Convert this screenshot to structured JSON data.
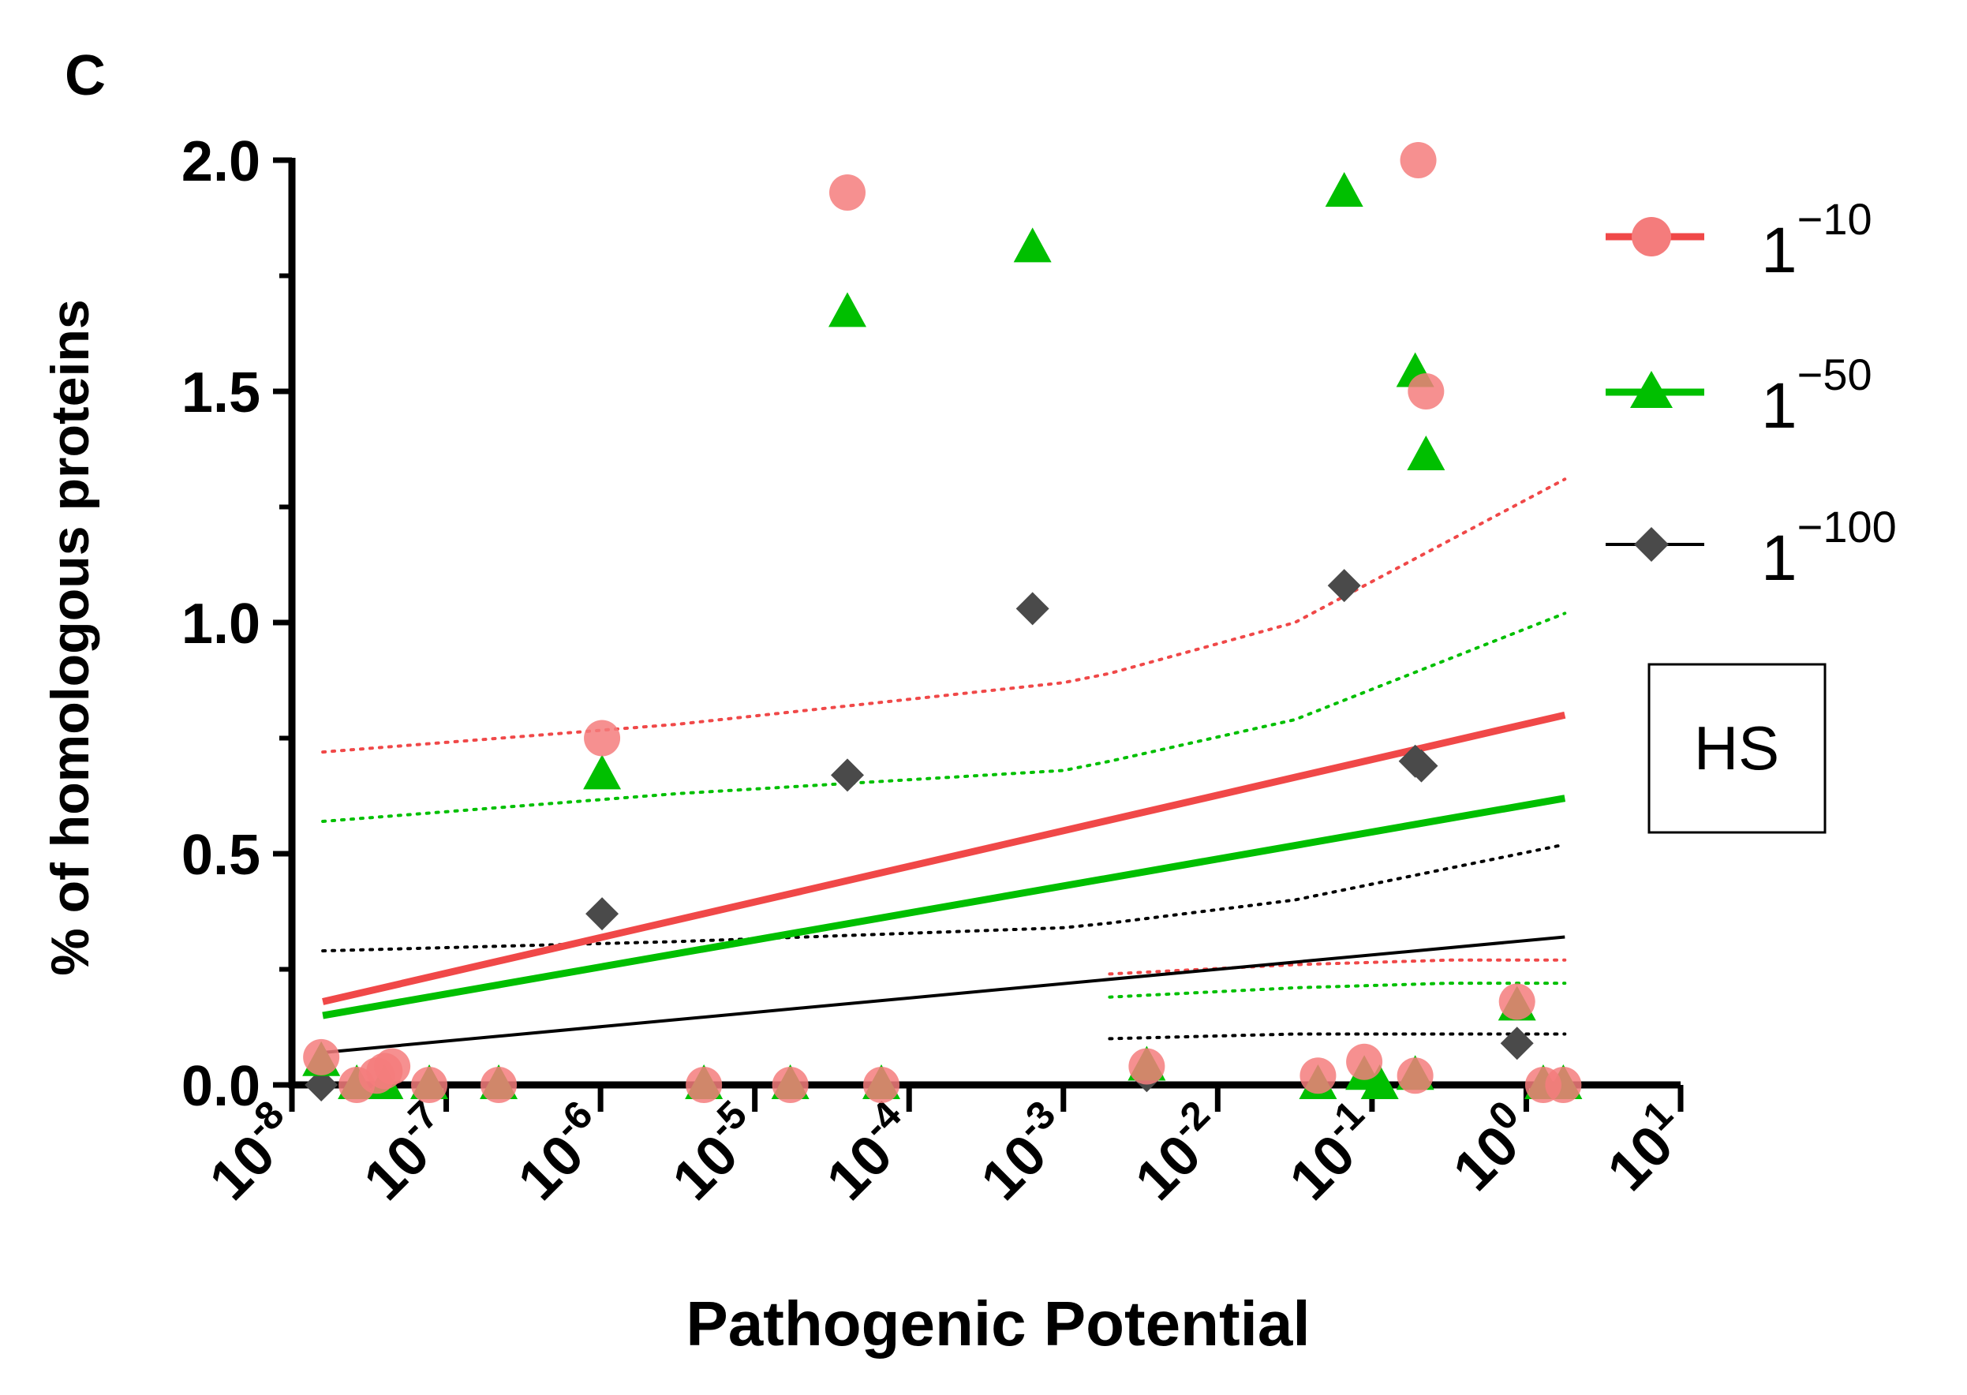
{
  "panel_label": "C",
  "chart_data": {
    "type": "scatter",
    "title": "",
    "xlabel": "Pathogenic Potential",
    "ylabel": "% of homologous proteins",
    "xscale": "log",
    "xlim_exp": [
      -8,
      1
    ],
    "ylim": [
      0,
      2.0
    ],
    "xticks": [
      {
        "base": "10",
        "exp": "-8",
        "value": -8
      },
      {
        "base": "10",
        "exp": "-7",
        "value": -7
      },
      {
        "base": "10",
        "exp": "-6",
        "value": -6
      },
      {
        "base": "10",
        "exp": "-5",
        "value": -5
      },
      {
        "base": "10",
        "exp": "-4",
        "value": -4
      },
      {
        "base": "10",
        "exp": "-3",
        "value": -3
      },
      {
        "base": "10",
        "exp": "-2",
        "value": -2
      },
      {
        "base": "10",
        "exp": "-1",
        "value": -1
      },
      {
        "base": "10",
        "exp": "0",
        "value": 0
      },
      {
        "base": "10",
        "exp": "1",
        "value": 1
      }
    ],
    "yticks": [
      {
        "label": "0.0",
        "value": 0
      },
      {
        "label": "0.5",
        "value": 0.5
      },
      {
        "label": "1.0",
        "value": 1.0
      },
      {
        "label": "1.5",
        "value": 1.5
      },
      {
        "label": "2.0",
        "value": 2.0
      }
    ],
    "annotation": "HS",
    "legend_position": "right",
    "series": [
      {
        "name": "1^-10",
        "legend_base": "1",
        "legend_exp": "−10",
        "marker": "circle",
        "color": "#f47c7c",
        "line_color": "#f04848",
        "points": [
          {
            "x": -7.81,
            "y": 0.06
          },
          {
            "x": -7.58,
            "y": 0.0
          },
          {
            "x": -7.45,
            "y": 0.02
          },
          {
            "x": -7.4,
            "y": 0.03
          },
          {
            "x": -7.35,
            "y": 0.04
          },
          {
            "x": -7.11,
            "y": 0.0
          },
          {
            "x": -6.66,
            "y": 0.0
          },
          {
            "x": -5.99,
            "y": 0.75
          },
          {
            "x": -5.33,
            "y": 0.0
          },
          {
            "x": -4.77,
            "y": 0.0
          },
          {
            "x": -4.4,
            "y": 1.93
          },
          {
            "x": -4.18,
            "y": 0.0
          },
          {
            "x": -2.46,
            "y": 0.04
          },
          {
            "x": -1.35,
            "y": 0.02
          },
          {
            "x": -1.05,
            "y": 0.05
          },
          {
            "x": -0.72,
            "y": 0.02
          },
          {
            "x": -0.7,
            "y": 2.0
          },
          {
            "x": -0.65,
            "y": 1.5
          },
          {
            "x": -0.06,
            "y": 0.18
          },
          {
            "x": 0.11,
            "y": 0.0
          },
          {
            "x": 0.24,
            "y": 0.0
          }
        ],
        "fit_line": {
          "x": [
            -7.8,
            0.25
          ],
          "y": [
            0.18,
            0.8
          ]
        },
        "ci_upper": {
          "x": [
            -7.8,
            -5.5,
            -3.0,
            -2.7,
            -1.5,
            0.25
          ],
          "y": [
            0.72,
            0.78,
            0.87,
            0.89,
            1.0,
            1.31
          ]
        },
        "ci_lower": {
          "x": [
            -2.7,
            -1.5,
            -0.5,
            0.25
          ],
          "y": [
            0.24,
            0.26,
            0.27,
            0.27
          ]
        }
      },
      {
        "name": "1^-50",
        "legend_base": "1",
        "legend_exp": "−50",
        "marker": "triangle",
        "color": "#00bf00",
        "line_color": "#00bf00",
        "points": [
          {
            "x": -7.81,
            "y": 0.05
          },
          {
            "x": -7.58,
            "y": 0.0
          },
          {
            "x": -7.4,
            "y": 0.0
          },
          {
            "x": -7.11,
            "y": 0.0
          },
          {
            "x": -6.66,
            "y": 0.0
          },
          {
            "x": -5.99,
            "y": 0.67
          },
          {
            "x": -5.33,
            "y": 0.0
          },
          {
            "x": -4.77,
            "y": 0.0
          },
          {
            "x": -4.4,
            "y": 1.67
          },
          {
            "x": -4.18,
            "y": 0.0
          },
          {
            "x": -3.2,
            "y": 1.81
          },
          {
            "x": -2.46,
            "y": 0.04
          },
          {
            "x": -1.35,
            "y": 0.0
          },
          {
            "x": -1.18,
            "y": 1.93
          },
          {
            "x": -1.05,
            "y": 0.02
          },
          {
            "x": -0.95,
            "y": 0.0
          },
          {
            "x": -0.72,
            "y": 1.54
          },
          {
            "x": -0.65,
            "y": 1.36
          },
          {
            "x": -0.72,
            "y": 0.02
          },
          {
            "x": -0.06,
            "y": 0.17
          },
          {
            "x": 0.11,
            "y": 0.0
          },
          {
            "x": 0.24,
            "y": 0.0
          }
        ],
        "fit_line": {
          "x": [
            -7.8,
            0.25
          ],
          "y": [
            0.15,
            0.62
          ]
        },
        "ci_upper": {
          "x": [
            -7.8,
            -5.5,
            -3.0,
            -2.7,
            -1.5,
            0.25
          ],
          "y": [
            0.57,
            0.63,
            0.68,
            0.7,
            0.79,
            1.02
          ]
        },
        "ci_lower": {
          "x": [
            -2.7,
            -1.5,
            -0.5,
            0.25
          ],
          "y": [
            0.19,
            0.21,
            0.22,
            0.22
          ]
        }
      },
      {
        "name": "1^-100",
        "legend_base": "1",
        "legend_exp": "−100",
        "marker": "diamond",
        "color": "#4a4a4a",
        "line_color": "#000000",
        "points": [
          {
            "x": -7.81,
            "y": 0.0
          },
          {
            "x": -5.99,
            "y": 0.37
          },
          {
            "x": -4.4,
            "y": 0.67
          },
          {
            "x": -3.2,
            "y": 1.03
          },
          {
            "x": -2.46,
            "y": 0.02
          },
          {
            "x": -1.18,
            "y": 1.08
          },
          {
            "x": -0.72,
            "y": 0.7
          },
          {
            "x": -0.68,
            "y": 0.69
          },
          {
            "x": -0.06,
            "y": 0.09
          }
        ],
        "fit_line": {
          "x": [
            -7.8,
            0.25
          ],
          "y": [
            0.07,
            0.32
          ]
        },
        "ci_upper": {
          "x": [
            -7.8,
            -5.5,
            -3.0,
            -2.7,
            -1.5,
            0.25
          ],
          "y": [
            0.29,
            0.31,
            0.34,
            0.35,
            0.4,
            0.52
          ]
        },
        "ci_lower": {
          "x": [
            -2.7,
            -1.5,
            -0.5,
            0.25
          ],
          "y": [
            0.1,
            0.11,
            0.11,
            0.11
          ]
        }
      }
    ]
  }
}
